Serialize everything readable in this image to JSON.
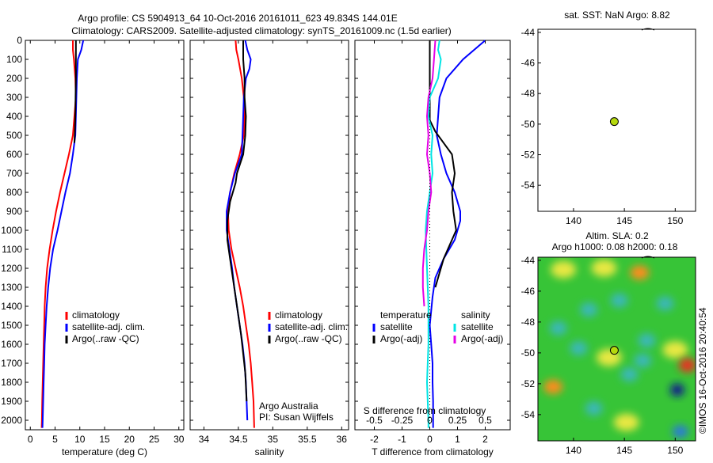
{
  "header": {
    "line1": "Argo profile: CS 5904913_64 10-Oct-2016 20161011_623 49.834S 144.01E",
    "line2": "Climatology: CARS2009. Satellite-adjusted climatology: synTS_20161009.nc (1.5d earlier)"
  },
  "footer": {
    "credit": "Argo Australia",
    "pi": "PI: Susan Wijffels",
    "stamp": "©IMOS 16-Oct-2016 20:40:54"
  },
  "chart_data": [
    {
      "type": "line",
      "xlabel": "temperature (deg C)",
      "ylabel": "",
      "xlim": [
        -1,
        31
      ],
      "ylim": [
        2050,
        0
      ],
      "xticks": [
        0,
        5,
        10,
        15,
        20,
        25,
        30
      ],
      "yticks": [
        0,
        100,
        200,
        300,
        400,
        500,
        600,
        700,
        800,
        900,
        1000,
        1100,
        1200,
        1300,
        1400,
        1500,
        1600,
        1700,
        1800,
        1900,
        2000
      ],
      "legend": [
        "climatology",
        "satellite-adj. clim.",
        "Argo(..raw -QC)"
      ],
      "series": [
        {
          "name": "climatology",
          "color": "#ff0000",
          "x": [
            8.6,
            8.6,
            8.8,
            9.1,
            9.2,
            8.6,
            7.8,
            6.9,
            6.0,
            5.2,
            4.5,
            3.9,
            3.4,
            3.1,
            2.9,
            2.8,
            2.7,
            2.6,
            2.5,
            2.4,
            2.35,
            2.3
          ],
          "y": [
            0,
            50,
            100,
            200,
            300,
            500,
            600,
            700,
            800,
            900,
            1000,
            1100,
            1200,
            1300,
            1400,
            1500,
            1600,
            1700,
            1800,
            1900,
            2000,
            2040
          ]
        },
        {
          "name": "satellite-adj. clim.",
          "color": "#0000ff",
          "x": [
            10.7,
            10.3,
            9.6,
            9.4,
            9.3,
            9.1,
            8.6,
            8.0,
            7.1,
            6.3,
            5.5,
            4.6,
            4.0,
            3.6,
            3.3,
            3.1,
            2.9,
            2.8,
            2.7,
            2.6,
            2.5,
            2.45
          ],
          "y": [
            0,
            50,
            100,
            200,
            300,
            500,
            600,
            700,
            800,
            900,
            1000,
            1100,
            1200,
            1300,
            1400,
            1500,
            1600,
            1700,
            1800,
            1900,
            2000,
            2040
          ]
        },
        {
          "name": "Argo(..raw -QC)",
          "color": "#000000",
          "x": [
            9.2,
            9.2,
            9.2,
            9.15,
            9.1,
            9.0,
            8.9
          ],
          "y": [
            0,
            100,
            200,
            300,
            400,
            480,
            540
          ]
        }
      ]
    },
    {
      "type": "line",
      "xlabel": "salinity",
      "ylabel": "",
      "xlim": [
        33.8,
        36.1
      ],
      "ylim": [
        2050,
        0
      ],
      "xticks": [
        34,
        34.5,
        35,
        35.5,
        36
      ],
      "legend": [
        "climatology",
        "satellite-adj. clim.",
        "Argo(..raw -QC)"
      ],
      "series": [
        {
          "name": "climatology",
          "color": "#ff0000",
          "x": [
            34.46,
            34.47,
            34.5,
            34.55,
            34.58,
            34.59,
            34.58,
            34.52,
            34.44,
            34.38,
            34.35,
            34.36,
            34.4,
            34.46,
            34.52,
            34.57,
            34.61,
            34.65,
            34.68,
            34.7,
            34.72,
            34.73
          ],
          "y": [
            0,
            50,
            100,
            200,
            300,
            400,
            500,
            600,
            700,
            800,
            900,
            1000,
            1100,
            1200,
            1300,
            1400,
            1500,
            1600,
            1700,
            1800,
            1900,
            2040
          ]
        },
        {
          "name": "satellite-adj. clim.",
          "color": "#0000ff",
          "x": [
            34.6,
            34.63,
            34.68,
            34.66,
            34.61,
            34.58,
            34.57,
            34.55,
            34.45,
            34.38,
            34.33,
            34.33,
            34.37,
            34.41,
            34.44,
            34.48,
            34.52,
            34.56,
            34.59,
            34.61,
            34.62,
            34.63
          ],
          "y": [
            0,
            50,
            100,
            150,
            200,
            300,
            400,
            600,
            700,
            800,
            900,
            1000,
            1100,
            1200,
            1300,
            1400,
            1500,
            1600,
            1700,
            1800,
            1900,
            2000
          ]
        },
        {
          "name": "Argo(..raw -QC)",
          "color": "#000000",
          "x": [
            34.57,
            34.57,
            34.59,
            34.59,
            34.61,
            34.6,
            34.57,
            34.48,
            34.46,
            34.38,
            34.34,
            34.34,
            34.38,
            34.42,
            34.46,
            34.5,
            34.54,
            34.57,
            34.6,
            34.62
          ],
          "y": [
            0,
            100,
            200,
            300,
            400,
            500,
            600,
            700,
            750,
            850,
            950,
            1050,
            1150,
            1250,
            1350,
            1450,
            1550,
            1650,
            1750,
            1900
          ]
        }
      ]
    },
    {
      "type": "line",
      "xlabel": "T difference from climatology",
      "xlabel2": "S difference from climatology",
      "xlim": [
        -2.7,
        2.9
      ],
      "ylim": [
        2050,
        0
      ],
      "xticks": [
        -2,
        -1,
        0,
        1,
        2
      ],
      "x2ticks": [
        "-0.5",
        "-0.25",
        "0",
        "0.25",
        "0.5"
      ],
      "legend_left": {
        "header": "temperature",
        "items": [
          "satellite",
          "Argo(-adj)"
        ]
      },
      "legend_right": {
        "header": "salinity",
        "items": [
          "satellite",
          "Argo(-adj)"
        ]
      },
      "series": [
        {
          "name": "satellite",
          "group": "temperature",
          "color": "#0000ff",
          "x": [
            2.0,
            1.2,
            0.6,
            0.35,
            0.25,
            0.4,
            0.6,
            0.9,
            1.1,
            1.1,
            0.9,
            0.5,
            0.2,
            0.1,
            0.0,
            0.05,
            0.1,
            0.1,
            0.12,
            0.12
          ],
          "y": [
            0,
            100,
            200,
            300,
            500,
            600,
            700,
            800,
            900,
            950,
            1050,
            1150,
            1250,
            1350,
            1500,
            1600,
            1700,
            1800,
            1900,
            2040
          ]
        },
        {
          "name": "Argo(-adj)",
          "group": "temperature",
          "color": "#000000",
          "x": [
            0.0,
            0.0,
            0.0,
            0.2,
            0.4,
            0.8,
            0.9,
            0.8,
            0.85,
            0.95,
            0.5,
            0.2
          ],
          "y": [
            0,
            300,
            420,
            480,
            520,
            600,
            700,
            800,
            900,
            1000,
            1150,
            1300
          ]
        },
        {
          "name": "satellite",
          "group": "salinity",
          "color": "#00e5e5",
          "x": [
            0.35,
            0.3,
            0.4,
            0.3,
            0.0,
            -0.05,
            0.1,
            0.05,
            0.1,
            0.0,
            -0.1,
            -0.15,
            -0.1,
            -0.05,
            -0.05,
            -0.1,
            -0.05,
            -0.05
          ],
          "y": [
            0,
            50,
            100,
            200,
            300,
            400,
            500,
            600,
            700,
            800,
            900,
            1000,
            1200,
            1400,
            1600,
            1800,
            2000,
            2040
          ]
        },
        {
          "name": "Argo(-adj)",
          "group": "salinity",
          "color": "#e600e6",
          "x": [
            0.2,
            0.15,
            0.1,
            -0.05,
            -0.1,
            -0.05,
            -0.1,
            0.0,
            0.05,
            -0.05,
            -0.1,
            -0.2,
            -0.25,
            -0.25,
            -0.2
          ],
          "y": [
            0,
            100,
            200,
            300,
            400,
            500,
            600,
            700,
            800,
            900,
            1000,
            1100,
            1200,
            1300,
            1400
          ]
        }
      ]
    },
    {
      "type": "scatter",
      "title": "sat. SST: NaN Argo: 8.82",
      "xlim": [
        136.5,
        152
      ],
      "ylim": [
        -55.7,
        -43.8
      ],
      "xticks": [
        140,
        145,
        150
      ],
      "yticks": [
        -44,
        -46,
        -48,
        -50,
        -52,
        -54
      ],
      "points": [
        {
          "x": 144.01,
          "y": -49.834,
          "color": "#b5d90e"
        }
      ]
    },
    {
      "type": "heatmap",
      "title": "Altim. SLA: 0.2",
      "subtitle": "Argo h1000: 0.08 h2000: 0.18",
      "xlim": [
        136.5,
        152
      ],
      "ylim": [
        -55.7,
        -43.8
      ],
      "xticks": [
        140,
        145,
        150
      ],
      "yticks": [
        -44,
        -46,
        -48,
        -50,
        -52,
        -54
      ],
      "points": [
        {
          "x": 144.01,
          "y": -49.834,
          "color": "#b5d90e"
        }
      ],
      "colors": {
        "background": "#37c437",
        "high": "#e8e842",
        "higher": "#ff8c1a",
        "highest": "#e83020",
        "low": "#3ab8b8",
        "lower": "#2a7ad8",
        "lowest": "#101a8c"
      },
      "blobs": [
        {
          "x": 143,
          "y": -44.5,
          "level": "high"
        },
        {
          "x": 146.5,
          "y": -44.8,
          "level": "higher"
        },
        {
          "x": 139,
          "y": -44.6,
          "level": "high"
        },
        {
          "x": 144.5,
          "y": -46.6,
          "level": "low"
        },
        {
          "x": 141.5,
          "y": -47.2,
          "level": "low"
        },
        {
          "x": 138.5,
          "y": -48.4,
          "level": "low"
        },
        {
          "x": 140.5,
          "y": -49.7,
          "level": "low"
        },
        {
          "x": 146.8,
          "y": -50.5,
          "level": "low"
        },
        {
          "x": 147.2,
          "y": -49.2,
          "level": "low"
        },
        {
          "x": 150,
          "y": -49.8,
          "level": "high"
        },
        {
          "x": 151.2,
          "y": -50.8,
          "level": "highest"
        },
        {
          "x": 143.5,
          "y": -50.3,
          "level": "high"
        },
        {
          "x": 138,
          "y": -52.2,
          "level": "higher"
        },
        {
          "x": 150.2,
          "y": -52.4,
          "level": "lowest"
        },
        {
          "x": 145.5,
          "y": -51.4,
          "level": "low"
        },
        {
          "x": 142,
          "y": -53.6,
          "level": "low"
        },
        {
          "x": 150.5,
          "y": -55.1,
          "level": "lower"
        },
        {
          "x": 145.2,
          "y": -54.5,
          "level": "high"
        },
        {
          "x": 149,
          "y": -46.8,
          "level": "low"
        }
      ]
    }
  ]
}
